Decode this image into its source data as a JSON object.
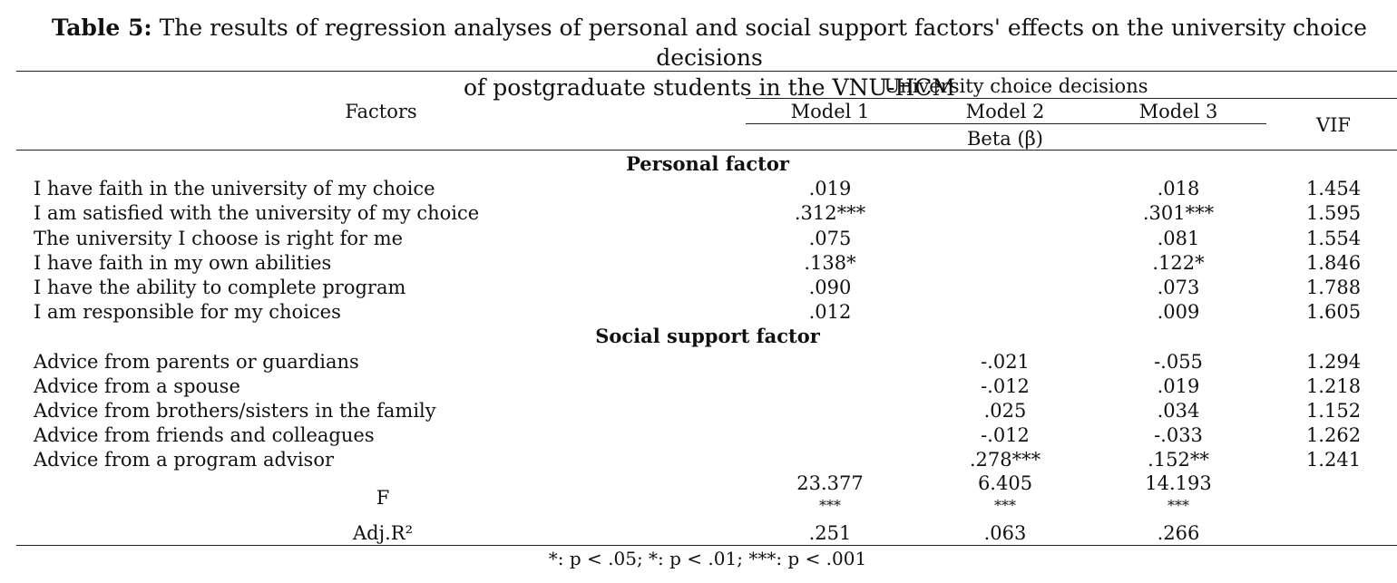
{
  "caption": {
    "label": "Table 5:",
    "text": "The results of regression analyses of personal and social support factors' effects on the university choice decisions",
    "text_line2": "of postgraduate students in the VNU-HCM"
  },
  "header": {
    "factors": "Factors",
    "group": "University choice decisions",
    "models": [
      "Model 1",
      "Model 2",
      "Model 3"
    ],
    "beta": "Beta (β)",
    "vif": "VIF"
  },
  "sections": [
    {
      "title": "Personal factor",
      "rows": [
        {
          "label": "I have faith in the university of my choice",
          "m1": ".019",
          "m2": "",
          "m3": ".018",
          "vif": "1.454"
        },
        {
          "label": "I am satisfied with the university of my choice",
          "m1": ".312***",
          "m2": "",
          "m3": ".301***",
          "vif": "1.595"
        },
        {
          "label": "The university I choose is right for me",
          "m1": ".075",
          "m2": "",
          "m3": ".081",
          "vif": "1.554"
        },
        {
          "label": "I have faith in my own abilities",
          "m1": ".138*",
          "m2": "",
          "m3": ".122*",
          "vif": "1.846"
        },
        {
          "label": "I have the ability to complete program",
          "m1": ".090",
          "m2": "",
          "m3": ".073",
          "vif": "1.788"
        },
        {
          "label": "I am responsible for my choices",
          "m1": ".012",
          "m2": "",
          "m3": ".009",
          "vif": "1.605"
        }
      ]
    },
    {
      "title": "Social support factor",
      "rows": [
        {
          "label": "Advice from parents or guardians",
          "m1": "",
          "m2": "-.021",
          "m3": "-.055",
          "vif": "1.294"
        },
        {
          "label": "Advice from a spouse",
          "m1": "",
          "m2": "-.012",
          "m3": ".019",
          "vif": "1.218"
        },
        {
          "label": "Advice from brothers/sisters in the family",
          "m1": "",
          "m2": ".025",
          "m3": ".034",
          "vif": "1.152"
        },
        {
          "label": "Advice from friends and colleagues",
          "m1": "",
          "m2": "-.012",
          "m3": "-.033",
          "vif": "1.262"
        },
        {
          "label": "Advice from a program advisor",
          "m1": "",
          "m2": ".278***",
          "m3": ".152**",
          "vif": "1.241"
        }
      ]
    }
  ],
  "f_row": {
    "label": "F",
    "values": [
      "23.377",
      "6.405",
      "14.193"
    ],
    "stars": [
      "***",
      "***",
      "***"
    ]
  },
  "adj_row": {
    "label": "Adj.R²",
    "values": [
      ".251",
      ".063",
      ".266"
    ]
  },
  "footnote": "*: p < .05; *: p < .01; ***: p < .001"
}
